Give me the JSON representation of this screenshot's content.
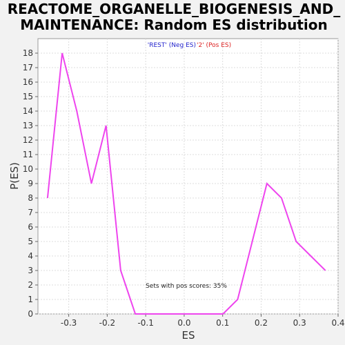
{
  "chart_data": {
    "type": "line",
    "title_lines": [
      "REACTOME_ORGANELLE_BIOGENESIS_AND_",
      "MAINTENANCE: Random ES distribution"
    ],
    "xlabel": "ES",
    "ylabel": "P(ES)",
    "xlim": [
      -0.38,
      0.4
    ],
    "ylim": [
      0,
      19
    ],
    "x_ticks": [
      "-0.3",
      "-0.2",
      "-0.1",
      "0.0",
      "0.1",
      "0.2",
      "0.3",
      "0.4"
    ],
    "x_tick_values": [
      -0.3,
      -0.2,
      -0.1,
      0.0,
      0.1,
      0.2,
      0.3,
      0.4
    ],
    "y_ticks": [
      "0",
      "1",
      "2",
      "3",
      "4",
      "5",
      "6",
      "7",
      "8",
      "9",
      "10",
      "11",
      "12",
      "13",
      "14",
      "15",
      "16",
      "17",
      "18"
    ],
    "y_tick_values": [
      0,
      1,
      2,
      3,
      4,
      5,
      6,
      7,
      8,
      9,
      10,
      11,
      12,
      13,
      14,
      15,
      16,
      17,
      18
    ],
    "grid": true,
    "legend": {
      "rest_label": "'REST' (Neg ES)",
      "rest_color": "#2222cc",
      "pos_label": "'2' (Pos ES)",
      "pos_color": "#dd2222"
    },
    "annotation": "Sets with pos scores: 35%",
    "series": [
      {
        "color": "#ee44ee",
        "x": [
          -0.355,
          -0.317,
          -0.279,
          -0.241,
          -0.203,
          -0.165,
          -0.127,
          -0.089,
          -0.051,
          -0.013,
          0.025,
          0.063,
          0.101,
          0.139,
          0.177,
          0.215,
          0.253,
          0.291,
          0.329,
          0.367
        ],
        "y": [
          8,
          18,
          14,
          9,
          13,
          3,
          0,
          0,
          0,
          0,
          0,
          0,
          0,
          1,
          5,
          9,
          8,
          5,
          4,
          3
        ]
      }
    ]
  }
}
